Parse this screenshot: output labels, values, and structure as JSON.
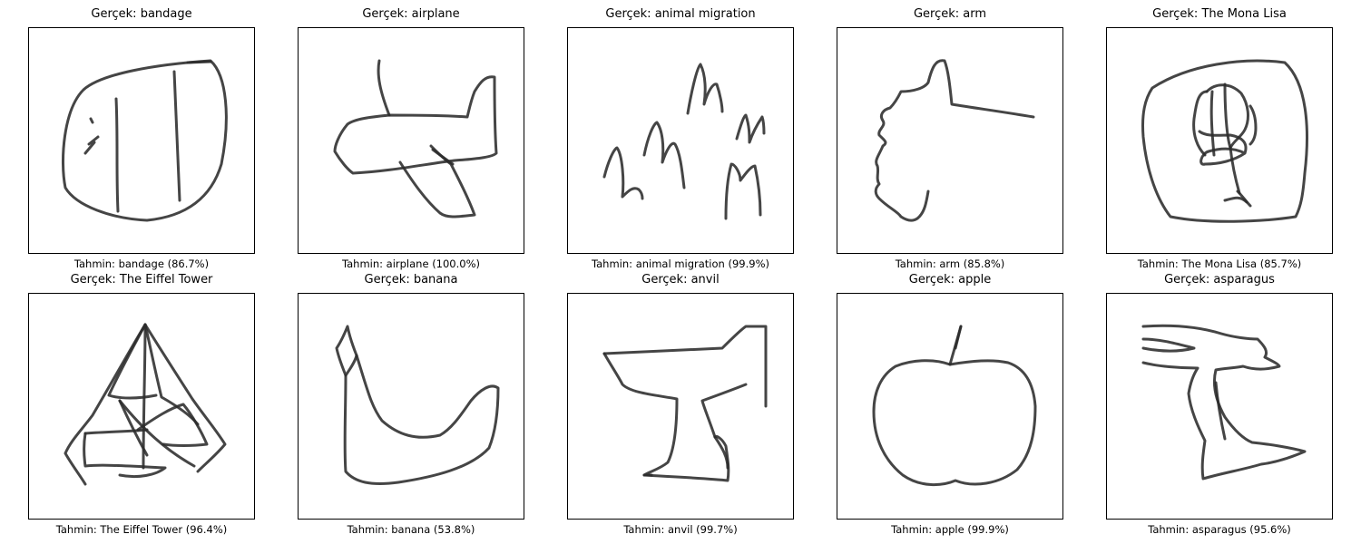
{
  "panels": [
    {
      "title": "Gerçek: bandage",
      "caption": "Tahmin: bandage (86.7%)",
      "drawing": "bandage-sketch"
    },
    {
      "title": "Gerçek: airplane",
      "caption": "Tahmin: airplane (100.0%)",
      "drawing": "airplane-sketch"
    },
    {
      "title": "Gerçek: animal migration",
      "caption": "Tahmin: animal migration (99.9%)",
      "drawing": "animal-migration-sketch"
    },
    {
      "title": "Gerçek: arm",
      "caption": "Tahmin: arm (85.8%)",
      "drawing": "arm-sketch"
    },
    {
      "title": "Gerçek: The Mona Lisa",
      "caption": "Tahmin: The Mona Lisa (85.7%)",
      "drawing": "mona-lisa-sketch"
    },
    {
      "title": "Gerçek: The Eiffel Tower",
      "caption": "Tahmin: The Eiffel Tower (96.4%)",
      "drawing": "eiffel-tower-sketch"
    },
    {
      "title": "Gerçek: banana",
      "caption": "Tahmin: banana (53.8%)",
      "drawing": "banana-sketch"
    },
    {
      "title": "Gerçek: anvil",
      "caption": "Tahmin: anvil (99.7%)",
      "drawing": "anvil-sketch"
    },
    {
      "title": "Gerçek: apple",
      "caption": "Tahmin: apple (99.9%)",
      "drawing": "apple-sketch"
    },
    {
      "title": "Gerçek: asparagus",
      "caption": "Tahmin: asparagus (95.6%)",
      "drawing": "asparagus-sketch"
    }
  ]
}
